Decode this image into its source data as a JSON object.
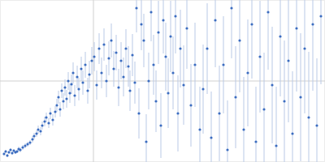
{
  "chart_data": {
    "type": "scatter",
    "x": [
      5,
      7,
      9,
      11,
      13,
      15,
      17,
      19,
      21,
      23,
      25,
      28,
      31,
      34,
      37,
      40,
      42,
      45,
      47,
      50,
      52,
      55,
      57,
      60,
      62,
      65,
      68,
      70,
      72,
      74,
      76,
      78,
      80,
      82,
      84,
      86,
      88,
      90,
      92,
      95,
      97,
      100,
      102,
      105,
      108,
      110,
      113,
      116,
      119,
      122,
      125,
      128,
      131,
      134,
      137,
      140,
      143,
      146,
      149,
      152,
      155,
      158,
      160,
      163,
      166,
      168,
      171,
      174,
      177,
      180,
      183,
      186,
      189,
      192,
      195,
      198,
      201,
      204,
      207,
      210,
      213,
      216,
      219,
      222,
      226,
      230,
      235,
      240,
      246,
      250,
      255,
      260,
      265,
      270,
      275,
      280,
      285,
      290,
      295,
      300,
      305,
      310,
      315,
      320,
      325,
      330,
      335,
      340,
      345,
      350,
      355,
      360,
      365,
      370,
      375,
      380,
      385,
      390,
      395
    ],
    "values": [
      10,
      13,
      8,
      12,
      15,
      11,
      14,
      12,
      13,
      16,
      15,
      18,
      20,
      22,
      24,
      28,
      32,
      35,
      40,
      38,
      45,
      50,
      55,
      48,
      60,
      52,
      62,
      70,
      80,
      65,
      88,
      75,
      92,
      78,
      100,
      85,
      96,
      110,
      82,
      105,
      90,
      115,
      98,
      120,
      88,
      108,
      125,
      130,
      95,
      140,
      110,
      145,
      100,
      128,
      150,
      115,
      135,
      92,
      125,
      105,
      140,
      118,
      88,
      132,
      98,
      190,
      60,
      170,
      150,
      25,
      100,
      185,
      120,
      75,
      160,
      45,
      175,
      130,
      85,
      155,
      110,
      180,
      60,
      140,
      95,
      165,
      70,
      120,
      40,
      90,
      140,
      30,
      175,
      60,
      120,
      15,
      190,
      80,
      150,
      40,
      110,
      170,
      25,
      130,
      65,
      185,
      95,
      20,
      155,
      75,
      125,
      35,
      165,
      80,
      140,
      55,
      170,
      45,
      180
    ],
    "error": [
      2,
      2,
      2,
      2,
      2,
      2,
      2,
      2,
      2,
      3,
      3,
      3,
      3,
      3,
      3,
      4,
      4,
      4,
      5,
      5,
      5,
      6,
      6,
      6,
      7,
      7,
      7,
      8,
      8,
      9,
      9,
      10,
      10,
      11,
      11,
      12,
      12,
      13,
      13,
      14,
      14,
      15,
      15,
      16,
      16,
      17,
      17,
      18,
      18,
      19,
      19,
      20,
      20,
      21,
      21,
      22,
      22,
      23,
      23,
      24,
      24,
      25,
      25,
      26,
      26,
      30,
      31,
      32,
      33,
      34,
      35,
      36,
      37,
      38,
      39,
      40,
      41,
      42,
      43,
      44,
      45,
      46,
      47,
      48,
      49,
      50,
      51,
      52,
      53,
      55,
      56,
      57,
      58,
      59,
      60,
      61,
      62,
      63,
      64,
      65,
      66,
      67,
      68,
      69,
      70,
      71,
      72,
      73,
      74,
      75,
      76,
      77,
      78,
      79,
      80,
      81,
      82,
      83,
      84
    ],
    "color": "#3b6cc0",
    "xlim": [
      0,
      400
    ],
    "ylim": [
      0,
      200
    ],
    "xticks": [
      115
    ],
    "yticks": [
      100
    ],
    "grid": true,
    "tick_labels": false
  }
}
